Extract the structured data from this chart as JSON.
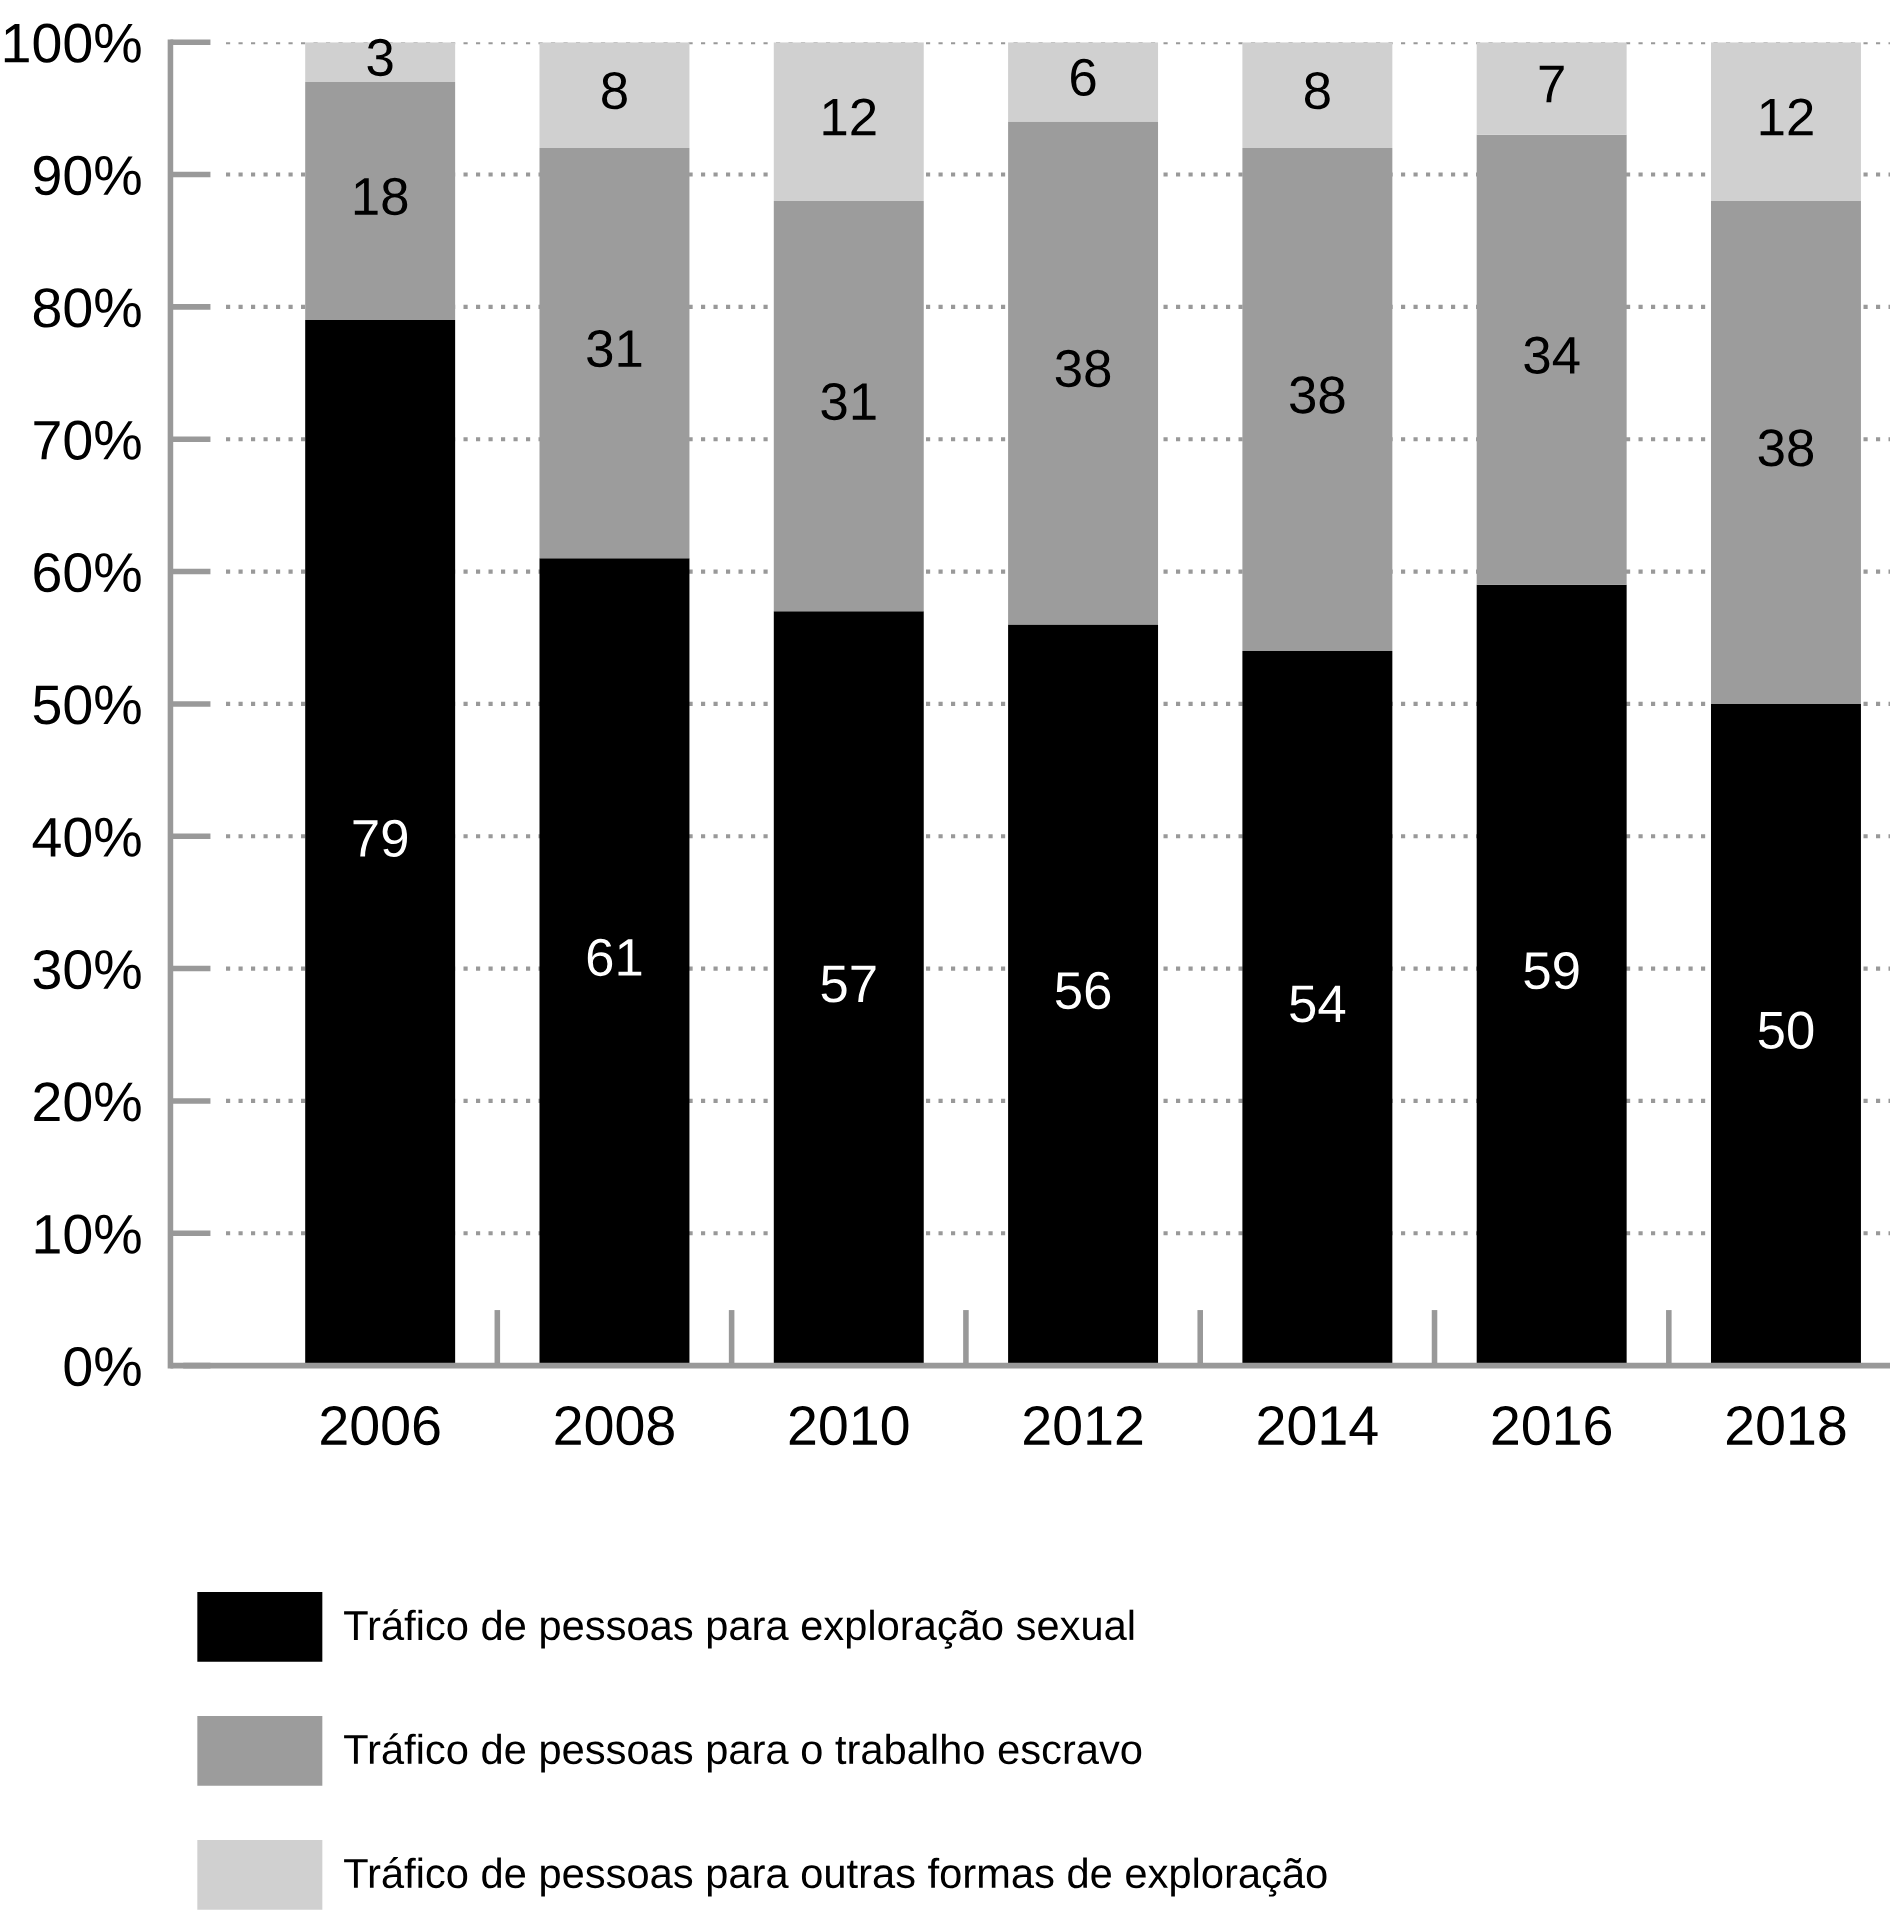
{
  "chart_data": {
    "type": "bar",
    "stacked": true,
    "categories": [
      "2006",
      "2008",
      "2010",
      "2012",
      "2014",
      "2016",
      "2018"
    ],
    "series": [
      {
        "name": "Tráfico de pessoas para exploração sexual",
        "color": "#000000",
        "values": [
          79,
          61,
          57,
          56,
          54,
          59,
          50
        ]
      },
      {
        "name": "Tráfico de pessoas para o trabalho escravo",
        "color": "#9c9c9c",
        "values": [
          18,
          31,
          31,
          38,
          38,
          34,
          38
        ]
      },
      {
        "name": "Tráfico de pessoas para outras formas de exploração",
        "color": "#d0d0d0",
        "values": [
          3,
          8,
          12,
          6,
          8,
          7,
          12
        ]
      }
    ],
    "ylim": [
      0,
      100
    ],
    "yticks": [
      {
        "value": 0,
        "label": "0%"
      },
      {
        "value": 10,
        "label": "10%"
      },
      {
        "value": 20,
        "label": "20%"
      },
      {
        "value": 30,
        "label": "30%"
      },
      {
        "value": 40,
        "label": "40%"
      },
      {
        "value": 50,
        "label": "50%"
      },
      {
        "value": 60,
        "label": "60%"
      },
      {
        "value": 70,
        "label": "70%"
      },
      {
        "value": 80,
        "label": "80%"
      },
      {
        "value": 90,
        "label": "90%"
      },
      {
        "value": 100,
        "label": "100%"
      }
    ],
    "grid": "y",
    "legend": "bottom",
    "data_labels": true
  }
}
